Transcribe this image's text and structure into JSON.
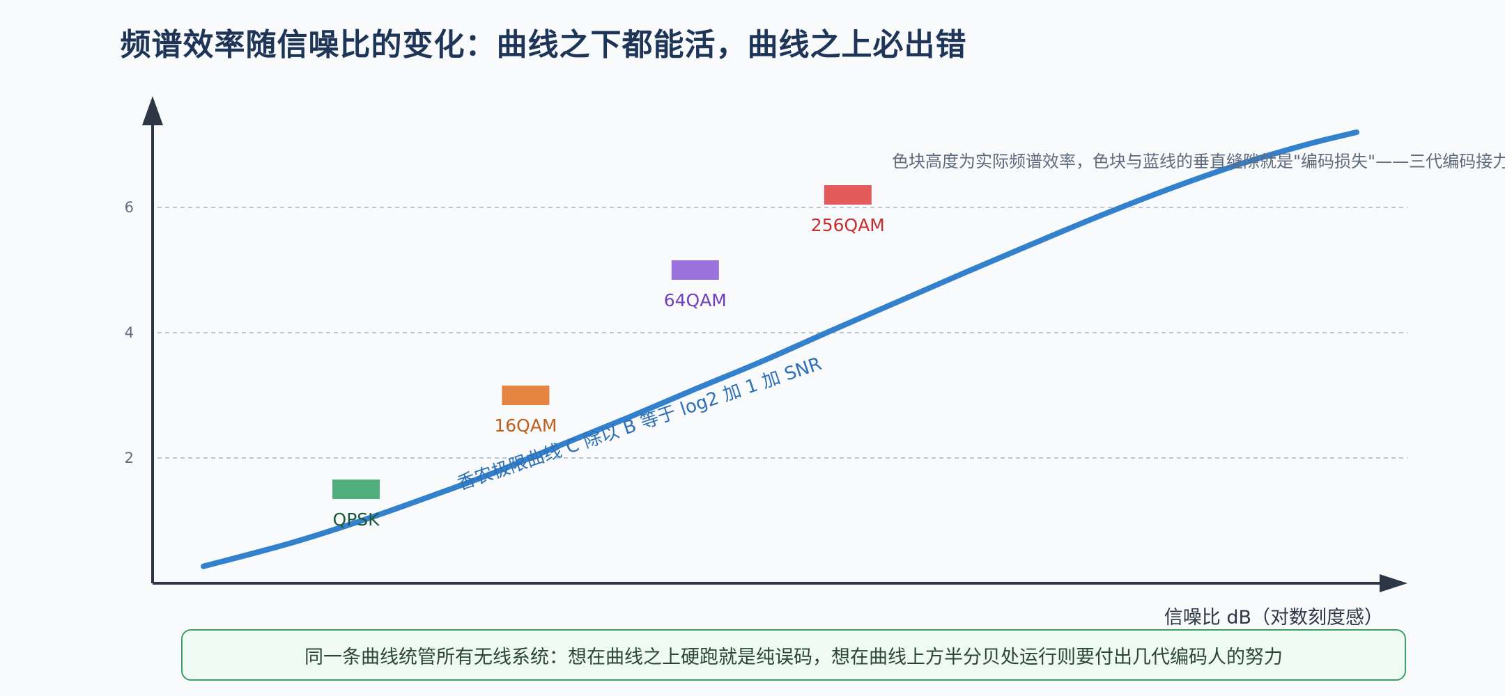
{
  "chart_data": {
    "type": "line",
    "title": "频谱效率随信噪比的变化：曲线之下都能活，曲线之上必出错",
    "xlabel": "信噪比 dB（对数刻度感）",
    "ylabel": "",
    "xlim": [
      -2,
      35
    ],
    "ylim": [
      0,
      7.5
    ],
    "yticks": [
      2,
      4,
      6
    ],
    "grid": true,
    "series": [
      {
        "name": "香农极限曲线 C 除以 B 等于 log2 加 1 加 SNR",
        "color": "#3381cc",
        "x": [
          -0.5,
          2,
          4,
          6,
          8,
          10,
          12,
          14,
          16,
          18,
          20,
          22,
          24,
          26,
          28,
          30,
          32,
          33.5
        ],
        "y": [
          0.27,
          0.63,
          0.97,
          1.35,
          1.75,
          2.2,
          2.64,
          3.1,
          3.55,
          4.03,
          4.5,
          4.97,
          5.43,
          5.88,
          6.3,
          6.68,
          7.0,
          7.2
        ]
      }
    ],
    "markers": [
      {
        "label": "QPSK",
        "x": 4,
        "y": 1.5,
        "color": "#52ae7d",
        "text_color": "#1d5a3b"
      },
      {
        "label": "16QAM",
        "x": 9,
        "y": 3.0,
        "color": "#e58541",
        "text_color": "#c05e1c"
      },
      {
        "label": "64QAM",
        "x": 14,
        "y": 5.0,
        "color": "#9b72dc",
        "text_color": "#6f3fbe"
      },
      {
        "label": "256QAM",
        "x": 18.5,
        "y": 6.2,
        "color": "#e55b5b",
        "text_color": "#c62f2f"
      }
    ],
    "annotations": [
      "色块高度为实际频谱效率，色块与蓝线的垂直缝隙就是\"编码损失\"——三代编码接力"
    ]
  },
  "callout": "同一条曲线统管所有无线系统：想在曲线之上硬跑就是纯误码，想在曲线上方半分贝处运行则要付出几代编码人的努力",
  "colors": {
    "axis": "#2c3645",
    "grid": "#a9b3c1",
    "title": "#1e3558",
    "curve": "#3381cc"
  }
}
